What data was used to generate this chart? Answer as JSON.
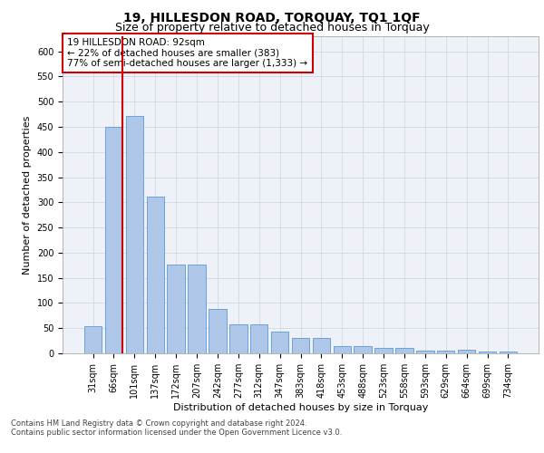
{
  "title": "19, HILLESDON ROAD, TORQUAY, TQ1 1QF",
  "subtitle": "Size of property relative to detached houses in Torquay",
  "xlabel": "Distribution of detached houses by size in Torquay",
  "ylabel": "Number of detached properties",
  "categories": [
    "31sqm",
    "66sqm",
    "101sqm",
    "137sqm",
    "172sqm",
    "207sqm",
    "242sqm",
    "277sqm",
    "312sqm",
    "347sqm",
    "383sqm",
    "418sqm",
    "453sqm",
    "488sqm",
    "523sqm",
    "558sqm",
    "593sqm",
    "629sqm",
    "664sqm",
    "699sqm",
    "734sqm"
  ],
  "values": [
    54,
    450,
    472,
    311,
    176,
    176,
    88,
    58,
    58,
    43,
    30,
    30,
    15,
    15,
    10,
    10,
    6,
    6,
    8,
    4,
    4
  ],
  "bar_color": "#aec6e8",
  "bar_edge_color": "#5b9bd5",
  "grid_color": "#d0d8e8",
  "background_color": "#ffffff",
  "plot_bg_color": "#eef2f8",
  "annotation_text": "19 HILLESDON ROAD: 92sqm\n← 22% of detached houses are smaller (383)\n77% of semi-detached houses are larger (1,333) →",
  "vline_color": "#cc0000",
  "box_color": "#cc0000",
  "footer_line1": "Contains HM Land Registry data © Crown copyright and database right 2024.",
  "footer_line2": "Contains public sector information licensed under the Open Government Licence v3.0.",
  "ylim": [
    0,
    630
  ],
  "yticks": [
    0,
    50,
    100,
    150,
    200,
    250,
    300,
    350,
    400,
    450,
    500,
    550,
    600
  ],
  "title_fontsize": 10,
  "subtitle_fontsize": 9,
  "axis_label_fontsize": 8,
  "tick_fontsize": 7,
  "annotation_fontsize": 7.5,
  "footer_fontsize": 6
}
